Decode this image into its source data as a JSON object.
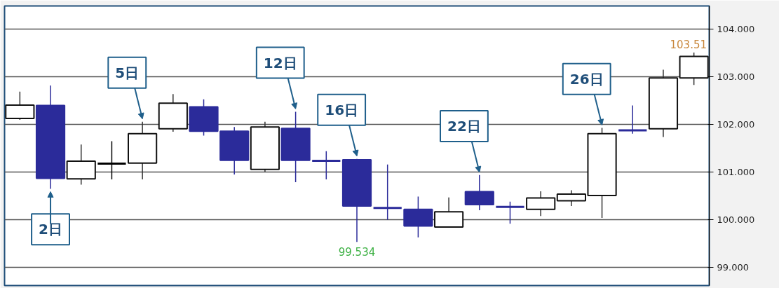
{
  "chart_data": {
    "type": "candlestick",
    "categories": [
      null,
      null,
      null,
      null,
      null,
      null,
      null,
      null,
      null,
      null,
      null,
      null,
      null,
      null,
      null,
      null,
      null,
      null,
      null,
      null,
      null,
      null,
      null
    ],
    "ohlc": [
      [
        102.13,
        102.69,
        102.1,
        102.41
      ],
      [
        102.4,
        102.82,
        100.65,
        100.87
      ],
      [
        100.86,
        101.58,
        100.74,
        101.23
      ],
      [
        101.18,
        101.65,
        100.85,
        101.18
      ],
      [
        101.19,
        102.06,
        100.85,
        101.81
      ],
      [
        101.91,
        102.64,
        101.85,
        102.45
      ],
      [
        102.37,
        102.53,
        101.77,
        101.86
      ],
      [
        101.86,
        101.95,
        100.95,
        101.25
      ],
      [
        101.06,
        102.06,
        101.01,
        101.95
      ],
      [
        101.92,
        102.27,
        100.79,
        101.25
      ],
      [
        101.24,
        101.44,
        100.85,
        101.24
      ],
      [
        101.26,
        101.28,
        99.534,
        100.29
      ],
      [
        100.25,
        101.16,
        100.0,
        100.25
      ],
      [
        100.22,
        100.49,
        99.63,
        99.87
      ],
      [
        99.85,
        100.47,
        99.85,
        100.17
      ],
      [
        100.59,
        100.94,
        100.2,
        100.32
      ],
      [
        100.27,
        100.38,
        99.92,
        100.27
      ],
      [
        100.22,
        100.6,
        100.08,
        100.46
      ],
      [
        100.4,
        100.62,
        100.29,
        100.54
      ],
      [
        100.51,
        101.93,
        100.04,
        101.81
      ],
      [
        101.88,
        102.4,
        101.81,
        101.88
      ],
      [
        101.91,
        103.15,
        101.74,
        102.98
      ],
      [
        102.98,
        103.51,
        102.83,
        103.43
      ]
    ],
    "colors": [
      "#ffffff",
      "#2b2b9a",
      "#ffffff",
      "#000000",
      "#ffffff",
      "#ffffff",
      "#2b2b9a",
      "#2b2b9a",
      "#ffffff",
      "#2b2b9a",
      "#2b2b9a",
      "#2b2b9a",
      "#2b2b9a",
      "#2b2b9a",
      "#ffffff",
      "#2b2b9a",
      "#2b2b9a",
      "#ffffff",
      "#ffffff",
      "#ffffff",
      "#2b2b9a",
      "#ffffff",
      "#ffffff"
    ],
    "value_labels": [
      null,
      null,
      null,
      null,
      null,
      null,
      null,
      null,
      null,
      null,
      null,
      "99.534",
      null,
      null,
      null,
      null,
      null,
      null,
      null,
      null,
      null,
      null,
      "103.51"
    ],
    "annotations": [
      "2日",
      "5日",
      "12日",
      "16日",
      "22日",
      "26日"
    ],
    "ylim": [
      98.62,
      104.49
    ],
    "yticks": [
      {
        "value": 99,
        "label": "99.000"
      },
      {
        "value": 100,
        "label": "100.000"
      },
      {
        "value": 101,
        "label": "101.000"
      },
      {
        "value": 102,
        "label": "102.000"
      },
      {
        "value": 103,
        "label": "103.000"
      },
      {
        "value": 104,
        "label": "104.000"
      }
    ],
    "grid": "y",
    "tick_labels": "y"
  }
}
